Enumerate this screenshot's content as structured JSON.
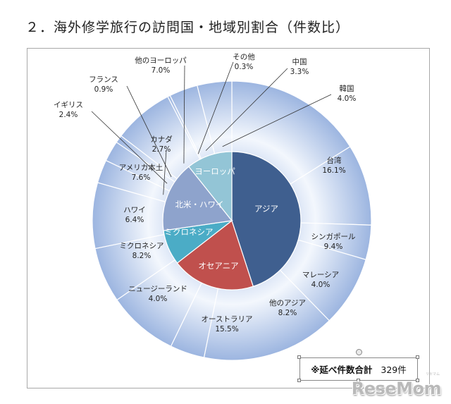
{
  "page": {
    "title": "２．海外修学旅行の訪問国・地域別割合（件数比）"
  },
  "total": {
    "label": "※延べ件数合計",
    "value": "329件"
  },
  "branding": {
    "logo_text": "ReseMom",
    "logo_sub": "リセマム"
  },
  "colors": {
    "asia": "#3f5f8f",
    "oceania": "#c0504d",
    "micronesia": "#4bacc6",
    "northamerica": "#8ea3cc",
    "europe": "#93c5d6",
    "outer_light": "#f3f7fd",
    "outer_dark": "#9cb5e0",
    "line": "#ffffff"
  },
  "chart_data": {
    "type": "pie",
    "subtype": "doughnut-with-inner-pie",
    "title": "２．海外修学旅行の訪問国・地域別割合（件数比）",
    "start_angle_deg": 0,
    "direction": "clockwise",
    "inner": [
      {
        "name": "アジア",
        "value": 45.0,
        "color_key": "asia",
        "text_color": "#ffffff"
      },
      {
        "name": "オセアニア",
        "value": 19.5,
        "color_key": "oceania",
        "text_color": "#ffffff"
      },
      {
        "name": "ミクロネシア",
        "value": 8.2,
        "color_key": "micronesia",
        "text_color": "#ffffff"
      },
      {
        "name": "北米・ハワイ",
        "value": 16.6,
        "color_key": "northamerica",
        "text_color": "#ffffff"
      },
      {
        "name": "ヨーロッパ",
        "value": 10.7,
        "color_key": "europe",
        "text_color": "#ffffff"
      }
    ],
    "outer": [
      {
        "name": "台湾",
        "value": 16.1,
        "label": "16.1%",
        "pos": "inside"
      },
      {
        "name": "シンガポール",
        "value": 9.4,
        "label": "9.4%",
        "pos": "inside"
      },
      {
        "name": "マレーシア",
        "value": 4.0,
        "label": "4.0%",
        "pos": "inside"
      },
      {
        "name": "他のアジア",
        "value": 8.2,
        "label": "8.2%",
        "pos": "inside"
      },
      {
        "name": "オーストラリア",
        "value": 15.5,
        "label": "15.5%",
        "pos": "inside"
      },
      {
        "name": "ニュージーランド",
        "value": 4.0,
        "label": "4.0%",
        "pos": "inside"
      },
      {
        "name": "ミクロネシア",
        "value": 8.2,
        "label": "8.2%",
        "pos": "inside"
      },
      {
        "name": "ハワイ",
        "value": 6.4,
        "label": "6.4%",
        "pos": "inside"
      },
      {
        "name": "アメリカ本土",
        "value": 7.6,
        "label": "7.6%",
        "pos": "inside"
      },
      {
        "name": "カナダ",
        "value": 2.7,
        "label": "2.7%",
        "pos": "callout"
      },
      {
        "name": "イギリス",
        "value": 2.4,
        "label": "2.4%",
        "pos": "callout"
      },
      {
        "name": "フランス",
        "value": 0.9,
        "label": "0.9%",
        "pos": "callout"
      },
      {
        "name": "他のヨーロッパ",
        "value": 7.0,
        "label": "7.0%",
        "pos": "callout"
      },
      {
        "name": "その他",
        "value": 0.3,
        "label": "0.3%",
        "pos": "callout"
      },
      {
        "name": "中国",
        "value": 3.3,
        "label": "3.3%",
        "pos": "callout"
      },
      {
        "name": "韓国",
        "value": 4.0,
        "label": "4.0%",
        "pos": "callout"
      }
    ]
  }
}
